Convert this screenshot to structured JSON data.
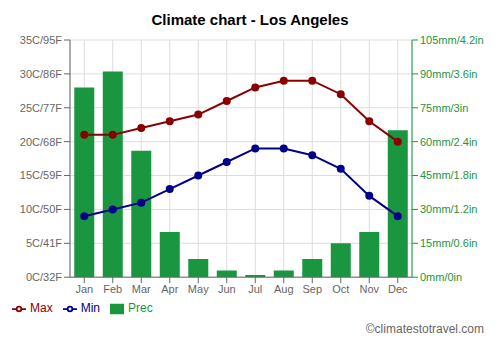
{
  "chart_data": {
    "type": "bar",
    "title": "Climate chart - Los Angeles",
    "categories": [
      "Jan",
      "Feb",
      "Mar",
      "Apr",
      "May",
      "Jun",
      "Jul",
      "Aug",
      "Sep",
      "Oct",
      "Nov",
      "Dec"
    ],
    "series": [
      {
        "name": "Prec",
        "type": "bar",
        "axis": "y2",
        "color": "#1a9641",
        "values": [
          84,
          91,
          56,
          20,
          8,
          3,
          1,
          3,
          8,
          15,
          20,
          65
        ]
      },
      {
        "name": "Min",
        "type": "line",
        "color": "#00008B",
        "marker": "circle",
        "values": [
          9,
          10,
          11,
          13,
          15,
          17,
          19,
          19,
          18,
          16,
          12,
          9
        ]
      },
      {
        "name": "Max",
        "type": "line",
        "color": "#8B0000",
        "marker": "circle",
        "values": [
          21,
          21,
          22,
          23,
          24,
          26,
          28,
          29,
          29,
          27,
          23,
          20
        ]
      }
    ],
    "ylim": [
      0,
      35
    ],
    "yticks": [
      {
        "value": 0,
        "label": "0C/32F"
      },
      {
        "value": 5,
        "label": "5C/41F"
      },
      {
        "value": 10,
        "label": "10C/50F"
      },
      {
        "value": 15,
        "label": "15C/59F"
      },
      {
        "value": 20,
        "label": "20C/68F"
      },
      {
        "value": 25,
        "label": "25C/77F"
      },
      {
        "value": 30,
        "label": "30C/86F"
      },
      {
        "value": 35,
        "label": "35C/95F"
      }
    ],
    "y2lim": [
      0,
      105
    ],
    "y2ticks": [
      {
        "value": 0,
        "label": "0mm/0in"
      },
      {
        "value": 15,
        "label": "15mm/0.6in"
      },
      {
        "value": 30,
        "label": "30mm/1.2in"
      },
      {
        "value": 45,
        "label": "45mm/1.8in"
      },
      {
        "value": 60,
        "label": "60mm/2.4in"
      },
      {
        "value": 75,
        "label": "75mm/3in"
      },
      {
        "value": 90,
        "label": "90mm/3.6in"
      },
      {
        "value": 105,
        "label": "105mm/4.2in"
      }
    ],
    "grid": true,
    "legend": "lower left",
    "annotations": [
      "©climatestotravel.com"
    ]
  }
}
